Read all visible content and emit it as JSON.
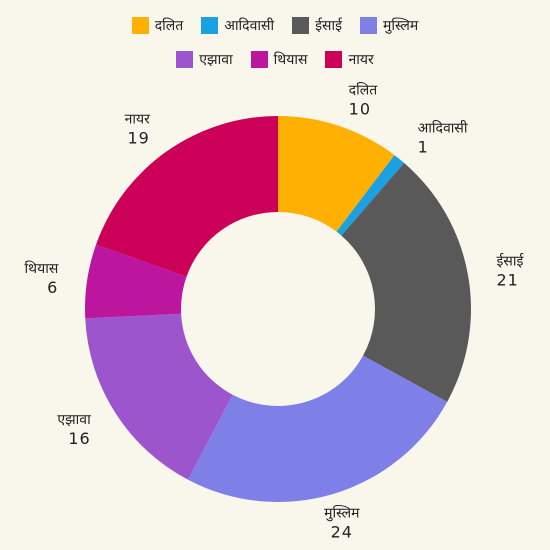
{
  "chart_data": {
    "type": "pie",
    "donut": true,
    "title": "",
    "categories": [
      "दलित",
      "आदिवासी",
      "ईसाई",
      "मुस्लिम",
      "एझावा",
      "थियास",
      "नायर"
    ],
    "values": [
      10,
      1,
      21,
      24,
      16,
      6,
      19
    ],
    "colors": [
      "#ffb000",
      "#1ba1e2",
      "#595959",
      "#7f7fe8",
      "#9c55cc",
      "#bb169d",
      "#cc0058"
    ],
    "legend_position": "top",
    "legend_rows": [
      [
        0,
        1,
        2,
        3
      ],
      [
        4,
        5,
        6
      ]
    ]
  }
}
